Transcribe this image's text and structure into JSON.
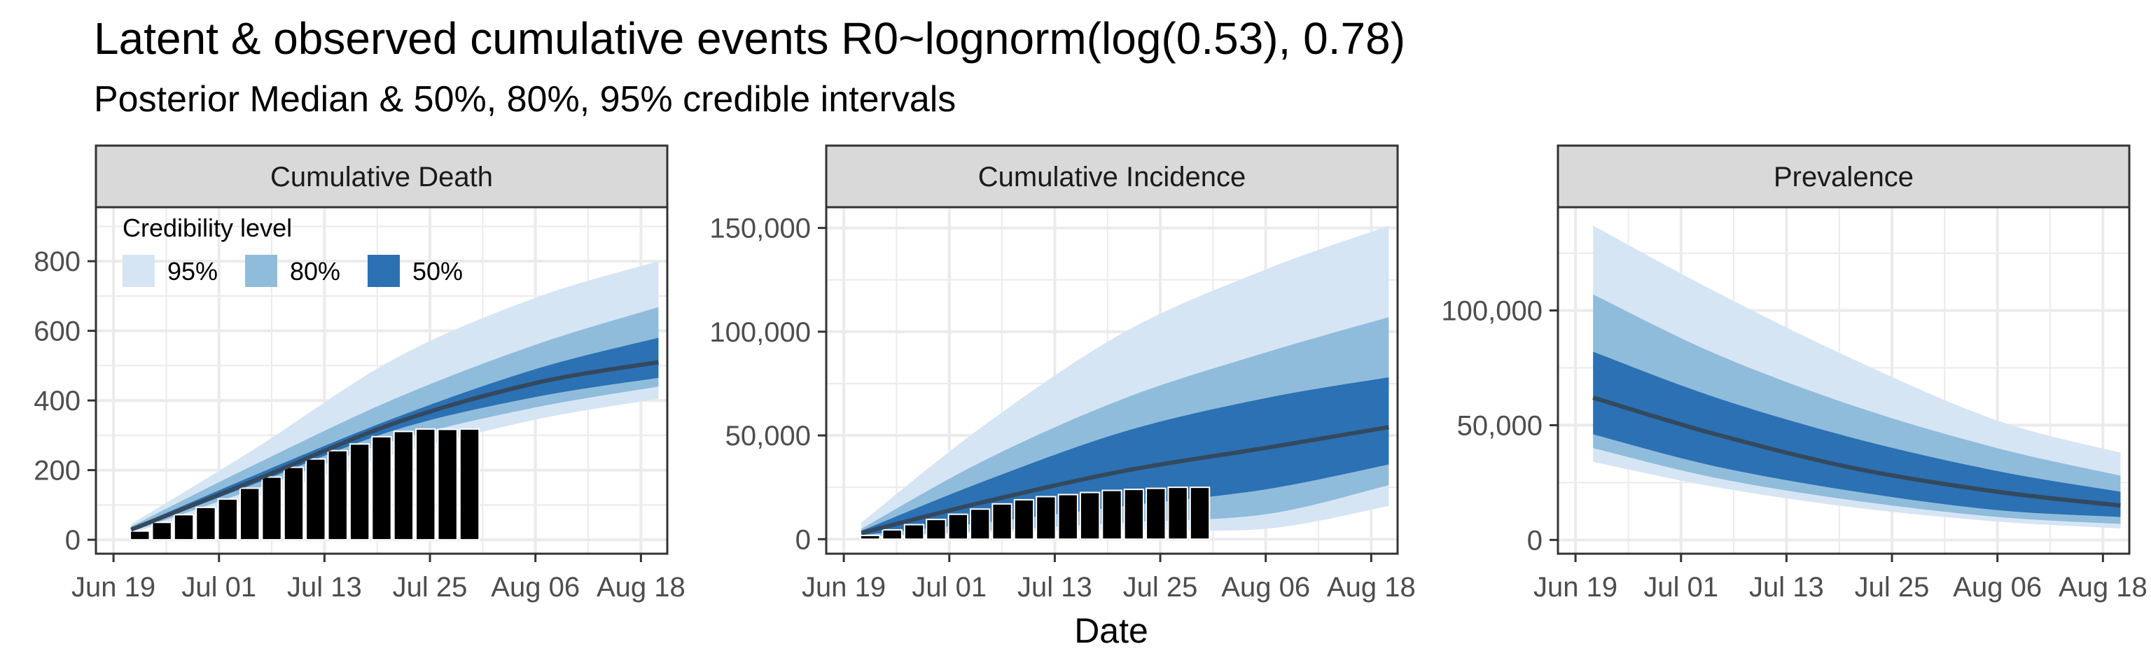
{
  "title": "Latent & observed cumulative events R0~lognorm(log(0.53), 0.78)",
  "subtitle": "Posterior Median & 50%, 80%, 95% credible intervals",
  "xlabel": "Date",
  "colors": {
    "ci95": "#d6e5f4",
    "ci80": "#90bcdb",
    "ci50": "#2b71b3",
    "median": "#34495e",
    "bars": "#000000",
    "strip": "#d9d9d9",
    "grid": "#ebebeb"
  },
  "legend": {
    "title": "Credibility level",
    "items": [
      "95%",
      "80%",
      "50%"
    ],
    "placement": "top-left inside first panel"
  },
  "chart_data": [
    {
      "type": "area",
      "strip": "Cumulative Death",
      "x_ticks": [
        "Jun 19",
        "Jul 01",
        "Jul 13",
        "Jul 25",
        "Aug 06",
        "Aug 18"
      ],
      "y_ticks": [
        "0",
        "200",
        "400",
        "600",
        "800"
      ],
      "xlim_day": [
        -2,
        63
      ],
      "ylim": [
        -40,
        955
      ],
      "ribbon_x_day": [
        2,
        16,
        32,
        48,
        62
      ],
      "ci95_lo": [
        20,
        120,
        245,
        345,
        405
      ],
      "ci95_hi": [
        45,
        260,
        520,
        695,
        800
      ],
      "ci80_lo": [
        23,
        145,
        285,
        380,
        440
      ],
      "ci80_hi": [
        38,
        215,
        405,
        560,
        668
      ],
      "ci50_lo": [
        26,
        160,
        315,
        410,
        465
      ],
      "ci50_hi": [
        33,
        185,
        350,
        490,
        580
      ],
      "median": [
        29,
        170,
        335,
        450,
        510
      ],
      "bars_day": [
        3,
        5.5,
        8,
        10.5,
        13,
        15.5,
        18,
        20.5,
        23,
        25.5,
        28,
        30.5,
        33,
        35.5,
        38,
        40.5
      ],
      "bars_value": [
        25,
        50,
        72,
        93,
        117,
        148,
        180,
        208,
        232,
        256,
        275,
        296,
        311,
        318,
        317,
        318
      ]
    },
    {
      "type": "area",
      "strip": "Cumulative Incidence",
      "x_ticks": [
        "Jun 19",
        "Jul 01",
        "Jul 13",
        "Jul 25",
        "Aug 06",
        "Aug 18"
      ],
      "y_ticks": [
        "0",
        "50,000",
        "100,000",
        "150,000"
      ],
      "xlim_day": [
        -2,
        63
      ],
      "ylim": [
        -7000,
        160000
      ],
      "ribbon_x_day": [
        2,
        16,
        32,
        48,
        62
      ],
      "ci95_lo": [
        1000,
        3000,
        4500,
        5000,
        16000
      ],
      "ci95_hi": [
        8000,
        55000,
        100000,
        130000,
        151000
      ],
      "ci80_lo": [
        1000,
        4000,
        8000,
        12000,
        26000
      ],
      "ci80_hi": [
        5000,
        38000,
        68000,
        90000,
        107000
      ],
      "ci50_lo": [
        2000,
        8000,
        16000,
        24000,
        36000
      ],
      "ci50_hi": [
        4000,
        28000,
        52000,
        68000,
        78000
      ],
      "median": [
        3000,
        18000,
        33000,
        44000,
        54000
      ],
      "bars_day": [
        3,
        5.5,
        8,
        10.5,
        13,
        15.5,
        18,
        20.5,
        23,
        25.5,
        28,
        30.5,
        33,
        35.5,
        38,
        40.5
      ],
      "bars_value": [
        1800,
        4500,
        7000,
        9500,
        12000,
        14500,
        17000,
        19000,
        20500,
        21500,
        22500,
        23500,
        24000,
        24500,
        25000,
        25000
      ]
    },
    {
      "type": "area",
      "strip": "Prevalence",
      "x_ticks": [
        "Jun 19",
        "Jul 01",
        "Jul 13",
        "Jul 25",
        "Aug 06",
        "Aug 18"
      ],
      "y_ticks": [
        "0",
        "50,000",
        "100,000"
      ],
      "xlim_day": [
        -2,
        63
      ],
      "ylim": [
        -6000,
        145000
      ],
      "ribbon_x_day": [
        2,
        16,
        32,
        48,
        62
      ],
      "ci95_lo": [
        34000,
        23000,
        14000,
        8000,
        5000
      ],
      "ci95_hi": [
        137000,
        108000,
        78000,
        52000,
        38000
      ],
      "ci80_lo": [
        40000,
        27000,
        17000,
        10000,
        7000
      ],
      "ci80_hi": [
        107000,
        81000,
        58000,
        40000,
        28000
      ],
      "ci50_lo": [
        46000,
        32000,
        21000,
        13000,
        10000
      ],
      "ci50_hi": [
        82000,
        62000,
        44000,
        30000,
        21000
      ],
      "median": [
        62000,
        46000,
        31000,
        21000,
        15000
      ],
      "bars_day": [],
      "bars_value": []
    }
  ]
}
